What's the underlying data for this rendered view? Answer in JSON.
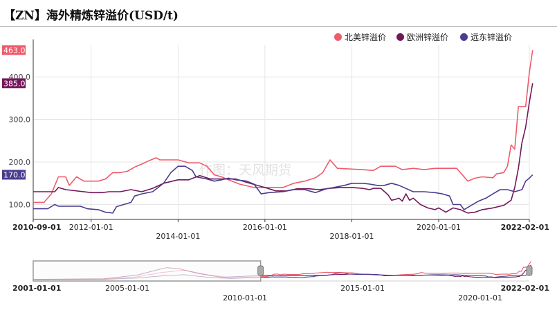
{
  "title": "【ZN】海外精炼锌溢价(USD/t)",
  "watermark": "作图：天风期货",
  "chart_data": {
    "type": "line",
    "title": "【ZN】海外精炼锌溢价(USD/t)",
    "xlabel": "",
    "ylabel": "",
    "x_range": [
      "2010-09-01",
      "2022-02-01"
    ],
    "ylim": [
      65,
      475
    ],
    "y_ticks": [
      100,
      200,
      300,
      400
    ],
    "y_tick_labels": [
      "100.0",
      "200.0",
      "300.0",
      "400.0"
    ],
    "x_ticks_row1": [
      {
        "date": "2010-09-01",
        "label": "2010-09-01",
        "edge": true
      },
      {
        "date": "2012-01-01",
        "label": "2012-01-01"
      },
      {
        "date": "2016-01-01",
        "label": "2016-01-01"
      },
      {
        "date": "2020-01-01",
        "label": "2020-01-01"
      },
      {
        "date": "2022-02-01",
        "label": "2022-02-01",
        "edge": true
      }
    ],
    "x_ticks_row2": [
      {
        "date": "2014-01-01",
        "label": "2014-01-01"
      },
      {
        "date": "2018-01-01",
        "label": "2018-01-01"
      }
    ],
    "grid": true,
    "legend_position": "top-right",
    "series": [
      {
        "name": "北美锌溢价",
        "color": "#ee5b6b",
        "last_value_label": "463.0",
        "points": [
          [
            "2010-09-01",
            105
          ],
          [
            "2010-12-01",
            105
          ],
          [
            "2011-02-01",
            125
          ],
          [
            "2011-04-01",
            165
          ],
          [
            "2011-06-01",
            165
          ],
          [
            "2011-07-01",
            145
          ],
          [
            "2011-09-01",
            165
          ],
          [
            "2011-11-01",
            155
          ],
          [
            "2012-03-01",
            155
          ],
          [
            "2012-05-01",
            160
          ],
          [
            "2012-07-01",
            175
          ],
          [
            "2012-09-01",
            175
          ],
          [
            "2012-11-01",
            178
          ],
          [
            "2013-01-01",
            188
          ],
          [
            "2013-03-01",
            195
          ],
          [
            "2013-05-01",
            203
          ],
          [
            "2013-07-01",
            210
          ],
          [
            "2013-08-01",
            205
          ],
          [
            "2014-01-01",
            205
          ],
          [
            "2014-04-01",
            198
          ],
          [
            "2014-07-01",
            198
          ],
          [
            "2014-09-01",
            190
          ],
          [
            "2014-11-01",
            170
          ],
          [
            "2015-01-01",
            165
          ],
          [
            "2015-03-01",
            158
          ],
          [
            "2015-06-01",
            148
          ],
          [
            "2015-10-01",
            140
          ],
          [
            "2016-02-01",
            140
          ],
          [
            "2016-06-01",
            140
          ],
          [
            "2016-09-01",
            150
          ],
          [
            "2016-12-01",
            155
          ],
          [
            "2017-03-01",
            163
          ],
          [
            "2017-05-01",
            175
          ],
          [
            "2017-07-01",
            205
          ],
          [
            "2017-09-01",
            185
          ],
          [
            "2018-04-01",
            182
          ],
          [
            "2018-07-01",
            180
          ],
          [
            "2018-09-01",
            190
          ],
          [
            "2019-01-01",
            190
          ],
          [
            "2019-03-01",
            182
          ],
          [
            "2019-06-01",
            185
          ],
          [
            "2019-09-01",
            182
          ],
          [
            "2019-12-01",
            185
          ],
          [
            "2020-06-01",
            185
          ],
          [
            "2020-09-01",
            155
          ],
          [
            "2020-11-01",
            162
          ],
          [
            "2021-01-01",
            165
          ],
          [
            "2021-04-01",
            163
          ],
          [
            "2021-05-01",
            172
          ],
          [
            "2021-07-01",
            175
          ],
          [
            "2021-08-01",
            190
          ],
          [
            "2021-09-01",
            240
          ],
          [
            "2021-10-01",
            230
          ],
          [
            "2021-11-01",
            330
          ],
          [
            "2022-01-01",
            330
          ],
          [
            "2022-02-01",
            410
          ],
          [
            "2022-03-01",
            463
          ]
        ]
      },
      {
        "name": "欧洲锌溢价",
        "color": "#72185a",
        "last_value_label": "385.0",
        "points": [
          [
            "2010-09-01",
            130
          ],
          [
            "2011-03-01",
            130
          ],
          [
            "2011-04-01",
            140
          ],
          [
            "2011-06-01",
            135
          ],
          [
            "2012-01-01",
            128
          ],
          [
            "2012-04-01",
            128
          ],
          [
            "2012-06-01",
            130
          ],
          [
            "2012-09-01",
            130
          ],
          [
            "2012-12-01",
            135
          ],
          [
            "2013-03-01",
            130
          ],
          [
            "2013-06-01",
            138
          ],
          [
            "2013-09-01",
            150
          ],
          [
            "2014-01-01",
            158
          ],
          [
            "2014-04-01",
            158
          ],
          [
            "2014-07-01",
            168
          ],
          [
            "2014-10-01",
            160
          ],
          [
            "2015-01-01",
            160
          ],
          [
            "2015-05-01",
            160
          ],
          [
            "2015-08-01",
            152
          ],
          [
            "2016-01-01",
            140
          ],
          [
            "2016-04-01",
            132
          ],
          [
            "2016-07-01",
            132
          ],
          [
            "2016-10-01",
            137
          ],
          [
            "2017-01-01",
            137
          ],
          [
            "2017-04-01",
            135
          ],
          [
            "2017-07-01",
            138
          ],
          [
            "2017-10-01",
            140
          ],
          [
            "2018-01-01",
            140
          ],
          [
            "2018-04-01",
            138
          ],
          [
            "2018-06-01",
            135
          ],
          [
            "2018-07-01",
            138
          ],
          [
            "2018-09-01",
            138
          ],
          [
            "2018-11-01",
            123
          ],
          [
            "2018-12-01",
            110
          ],
          [
            "2019-01-01",
            112
          ],
          [
            "2019-02-01",
            115
          ],
          [
            "2019-03-01",
            108
          ],
          [
            "2019-04-01",
            125
          ],
          [
            "2019-05-01",
            110
          ],
          [
            "2019-06-01",
            115
          ],
          [
            "2019-08-01",
            100
          ],
          [
            "2019-10-01",
            92
          ],
          [
            "2019-12-01",
            88
          ],
          [
            "2020-01-01",
            92
          ],
          [
            "2020-03-01",
            82
          ],
          [
            "2020-05-01",
            92
          ],
          [
            "2020-07-01",
            88
          ],
          [
            "2020-09-01",
            80
          ],
          [
            "2020-11-01",
            82
          ],
          [
            "2021-01-01",
            88
          ],
          [
            "2021-04-01",
            92
          ],
          [
            "2021-07-01",
            98
          ],
          [
            "2021-09-01",
            110
          ],
          [
            "2021-10-01",
            140
          ],
          [
            "2021-11-01",
            185
          ],
          [
            "2021-12-01",
            245
          ],
          [
            "2022-01-01",
            282
          ],
          [
            "2022-02-01",
            340
          ],
          [
            "2022-03-01",
            385
          ]
        ]
      },
      {
        "name": "远东锌溢价",
        "color": "#4a3c8e",
        "last_value_label": "170.0",
        "points": [
          [
            "2010-09-01",
            90
          ],
          [
            "2011-01-01",
            90
          ],
          [
            "2011-03-01",
            100
          ],
          [
            "2011-04-01",
            96
          ],
          [
            "2011-10-01",
            96
          ],
          [
            "2011-12-01",
            90
          ],
          [
            "2012-03-01",
            88
          ],
          [
            "2012-05-01",
            82
          ],
          [
            "2012-07-01",
            80
          ],
          [
            "2012-08-01",
            95
          ],
          [
            "2012-10-01",
            100
          ],
          [
            "2012-12-01",
            105
          ],
          [
            "2013-01-01",
            120
          ],
          [
            "2013-03-01",
            125
          ],
          [
            "2013-06-01",
            130
          ],
          [
            "2013-09-01",
            150
          ],
          [
            "2013-11-01",
            175
          ],
          [
            "2014-01-01",
            190
          ],
          [
            "2014-03-01",
            190
          ],
          [
            "2014-05-01",
            180
          ],
          [
            "2014-06-01",
            165
          ],
          [
            "2014-09-01",
            160
          ],
          [
            "2014-11-01",
            155
          ],
          [
            "2015-01-01",
            158
          ],
          [
            "2015-03-01",
            162
          ],
          [
            "2015-05-01",
            158
          ],
          [
            "2015-08-01",
            155
          ],
          [
            "2015-10-01",
            148
          ],
          [
            "2015-12-01",
            125
          ],
          [
            "2016-02-01",
            128
          ],
          [
            "2016-06-01",
            130
          ],
          [
            "2016-09-01",
            135
          ],
          [
            "2016-12-01",
            135
          ],
          [
            "2017-03-01",
            128
          ],
          [
            "2017-06-01",
            137
          ],
          [
            "2017-08-01",
            140
          ],
          [
            "2017-11-01",
            145
          ],
          [
            "2018-01-01",
            150
          ],
          [
            "2018-04-01",
            150
          ],
          [
            "2018-06-01",
            148
          ],
          [
            "2018-08-01",
            145
          ],
          [
            "2018-10-01",
            145
          ],
          [
            "2018-12-01",
            150
          ],
          [
            "2019-02-01",
            145
          ],
          [
            "2019-06-01",
            130
          ],
          [
            "2019-09-01",
            130
          ],
          [
            "2019-12-01",
            128
          ],
          [
            "2020-02-01",
            125
          ],
          [
            "2020-04-01",
            120
          ],
          [
            "2020-05-01",
            100
          ],
          [
            "2020-07-01",
            100
          ],
          [
            "2020-08-01",
            88
          ],
          [
            "2020-10-01",
            98
          ],
          [
            "2020-12-01",
            108
          ],
          [
            "2021-02-01",
            115
          ],
          [
            "2021-04-01",
            125
          ],
          [
            "2021-06-01",
            135
          ],
          [
            "2021-08-01",
            135
          ],
          [
            "2021-10-01",
            130
          ],
          [
            "2021-12-01",
            135
          ],
          [
            "2022-01-01",
            155
          ],
          [
            "2022-02-01",
            162
          ],
          [
            "2022-03-01",
            170
          ]
        ]
      }
    ],
    "navigator": {
      "x_range": [
        "2001-01-01",
        "2022-02-01"
      ],
      "selection": [
        "2001-01-01",
        "2010-09-01"
      ],
      "labels_row1": [
        {
          "date": "2001-01-01",
          "label": "2001-01-01",
          "edge": true
        },
        {
          "date": "2005-01-01",
          "label": "2005-01-01"
        },
        {
          "date": "2015-01-01",
          "label": "2015-01-01"
        },
        {
          "date": "2022-02-01",
          "label": "2022-02-01",
          "edge": true
        }
      ],
      "labels_row2": [
        {
          "date": "2010-01-01",
          "label": "2010-01-01"
        },
        {
          "date": "2020-01-01",
          "label": "2020-01-01"
        }
      ],
      "history": [
        {
          "series": 0,
          "points": [
            [
              "2001-01-01",
              40
            ],
            [
              "2004-01-01",
              45
            ],
            [
              "2005-06-01",
              100
            ],
            [
              "2006-06-01",
              200
            ],
            [
              "2007-06-01",
              260
            ],
            [
              "2008-06-01",
              150
            ],
            [
              "2009-06-01",
              80
            ],
            [
              "2010-09-01",
              105
            ]
          ]
        },
        {
          "series": 1,
          "points": [
            [
              "2001-01-01",
              40
            ],
            [
              "2004-01-01",
              55
            ],
            [
              "2005-06-01",
              140
            ],
            [
              "2006-03-01",
              250
            ],
            [
              "2006-09-01",
              320
            ],
            [
              "2007-03-01",
              300
            ],
            [
              "2008-01-01",
              180
            ],
            [
              "2009-01-01",
              90
            ],
            [
              "2010-09-01",
              130
            ]
          ]
        },
        {
          "series": 2,
          "points": [
            [
              "2001-01-01",
              35
            ],
            [
              "2004-01-01",
              40
            ],
            [
              "2005-06-01",
              70
            ],
            [
              "2006-06-01",
              120
            ],
            [
              "2007-06-01",
              150
            ],
            [
              "2008-06-01",
              90
            ],
            [
              "2009-06-01",
              60
            ],
            [
              "2010-09-01",
              90
            ]
          ]
        }
      ]
    }
  }
}
